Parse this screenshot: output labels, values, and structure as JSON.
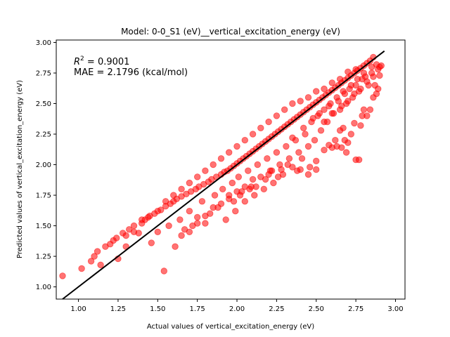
{
  "chart_data": {
    "type": "scatter",
    "title": "Model: 0-0_S1 (eV)__vertical_excitation_energy (eV)",
    "xlabel": "Actual values of vertical_excitation_energy (eV)",
    "ylabel": "Predicted values of vertical_excitation_energy (eV)",
    "xlim": [
      0.86,
      3.06
    ],
    "ylim": [
      0.9,
      3.02
    ],
    "x_ticks": [
      "1.00",
      "1.25",
      "1.50",
      "1.75",
      "2.00",
      "2.25",
      "2.50",
      "2.75",
      "3.00"
    ],
    "y_ticks": [
      "1.00",
      "1.25",
      "1.50",
      "1.75",
      "2.00",
      "2.25",
      "2.50",
      "2.75",
      "3.00"
    ],
    "grid": false,
    "annotations": {
      "r2_prefix": "R",
      "r2_sup": "2",
      "r2_value": " = 0.9001",
      "mae": "MAE = 2.1796 (kcal/mol)"
    },
    "fit_line": {
      "x": [
        0.9,
        2.93
      ],
      "y": [
        0.9,
        2.93
      ]
    },
    "point_color": "#ff0000",
    "point_alpha": 0.55,
    "line_color": "#000000",
    "series": [
      {
        "values": [
          [
            0.9,
            1.09
          ],
          [
            1.02,
            1.15
          ],
          [
            1.08,
            1.21
          ],
          [
            1.1,
            1.25
          ],
          [
            1.12,
            1.29
          ],
          [
            1.14,
            1.18
          ],
          [
            1.17,
            1.33
          ],
          [
            1.2,
            1.35
          ],
          [
            1.22,
            1.38
          ],
          [
            1.24,
            1.4
          ],
          [
            1.25,
            1.23
          ],
          [
            1.28,
            1.44
          ],
          [
            1.3,
            1.33
          ],
          [
            1.32,
            1.47
          ],
          [
            1.35,
            1.5
          ],
          [
            1.38,
            1.44
          ],
          [
            1.4,
            1.52
          ],
          [
            1.42,
            1.55
          ],
          [
            1.44,
            1.57
          ],
          [
            1.46,
            1.36
          ],
          [
            1.48,
            1.6
          ],
          [
            1.5,
            1.45
          ],
          [
            1.52,
            1.63
          ],
          [
            1.54,
            1.13
          ],
          [
            1.55,
            1.66
          ],
          [
            1.57,
            1.5
          ],
          [
            1.58,
            1.68
          ],
          [
            1.6,
            1.7
          ],
          [
            1.61,
            1.33
          ],
          [
            1.62,
            1.72
          ],
          [
            1.64,
            1.55
          ],
          [
            1.65,
            1.74
          ],
          [
            1.67,
            1.47
          ],
          [
            1.68,
            1.76
          ],
          [
            1.7,
            1.62
          ],
          [
            1.71,
            1.78
          ],
          [
            1.72,
            1.5
          ],
          [
            1.74,
            1.8
          ],
          [
            1.75,
            1.57
          ],
          [
            1.76,
            1.82
          ],
          [
            1.78,
            1.7
          ],
          [
            1.79,
            1.84
          ],
          [
            1.8,
            1.52
          ],
          [
            1.82,
            1.86
          ],
          [
            1.83,
            1.6
          ],
          [
            1.84,
            1.88
          ],
          [
            1.86,
            1.75
          ],
          [
            1.87,
            1.9
          ],
          [
            1.88,
            1.65
          ],
          [
            1.9,
            1.92
          ],
          [
            1.91,
            1.8
          ],
          [
            1.92,
            1.94
          ],
          [
            1.93,
            1.55
          ],
          [
            1.94,
            1.95
          ],
          [
            1.95,
            1.72
          ],
          [
            1.96,
            1.97
          ],
          [
            1.97,
            1.85
          ],
          [
            1.98,
            1.99
          ],
          [
            1.99,
            1.62
          ],
          [
            2.0,
            2.01
          ],
          [
            2.01,
            1.9
          ],
          [
            2.02,
            2.03
          ],
          [
            2.03,
            1.78
          ],
          [
            2.04,
            2.05
          ],
          [
            2.05,
            1.7
          ],
          [
            2.06,
            2.07
          ],
          [
            2.07,
            1.95
          ],
          [
            2.08,
            2.09
          ],
          [
            2.09,
            1.82
          ],
          [
            2.1,
            2.11
          ],
          [
            2.11,
            1.75
          ],
          [
            2.12,
            2.13
          ],
          [
            2.13,
            2.0
          ],
          [
            2.14,
            2.15
          ],
          [
            2.15,
            1.9
          ],
          [
            2.16,
            2.17
          ],
          [
            2.17,
            1.8
          ],
          [
            2.18,
            2.19
          ],
          [
            2.19,
            2.05
          ],
          [
            2.2,
            2.21
          ],
          [
            2.21,
            1.95
          ],
          [
            2.22,
            2.23
          ],
          [
            2.23,
            1.85
          ],
          [
            2.24,
            2.25
          ],
          [
            2.25,
            2.1
          ],
          [
            2.26,
            2.27
          ],
          [
            2.27,
            2.0
          ],
          [
            2.28,
            2.29
          ],
          [
            2.29,
            1.92
          ],
          [
            2.3,
            2.31
          ],
          [
            2.31,
            2.15
          ],
          [
            2.32,
            2.33
          ],
          [
            2.33,
            2.05
          ],
          [
            2.34,
            2.35
          ],
          [
            2.35,
            1.98
          ],
          [
            2.36,
            2.37
          ],
          [
            2.37,
            2.2
          ],
          [
            2.38,
            2.39
          ],
          [
            2.39,
            2.1
          ],
          [
            2.4,
            2.41
          ],
          [
            2.41,
            2.05
          ],
          [
            2.42,
            2.43
          ],
          [
            2.43,
            2.25
          ],
          [
            2.44,
            2.45
          ],
          [
            2.45,
            2.15
          ],
          [
            2.46,
            2.47
          ],
          [
            2.47,
            2.35
          ],
          [
            2.48,
            2.49
          ],
          [
            2.49,
            2.2
          ],
          [
            2.5,
            2.51
          ],
          [
            2.51,
            2.4
          ],
          [
            2.52,
            2.53
          ],
          [
            2.53,
            2.28
          ],
          [
            2.54,
            2.55
          ],
          [
            2.55,
            2.45
          ],
          [
            2.56,
            2.57
          ],
          [
            2.57,
            2.35
          ],
          [
            2.58,
            2.59
          ],
          [
            2.59,
            2.5
          ],
          [
            2.6,
            2.61
          ],
          [
            2.61,
            2.42
          ],
          [
            2.62,
            2.63
          ],
          [
            2.63,
            2.55
          ],
          [
            2.64,
            2.65
          ],
          [
            2.65,
            2.45
          ],
          [
            2.66,
            2.67
          ],
          [
            2.67,
            2.6
          ],
          [
            2.68,
            2.69
          ],
          [
            2.69,
            2.5
          ],
          [
            2.7,
            2.71
          ],
          [
            2.71,
            2.62
          ],
          [
            2.72,
            2.73
          ],
          [
            2.73,
            2.55
          ],
          [
            2.74,
            2.75
          ],
          [
            2.75,
            2.65
          ],
          [
            2.76,
            2.77
          ],
          [
            2.77,
            2.6
          ],
          [
            2.78,
            2.79
          ],
          [
            2.79,
            2.7
          ],
          [
            2.8,
            2.81
          ],
          [
            2.81,
            2.72
          ],
          [
            2.82,
            2.83
          ],
          [
            2.83,
            2.65
          ],
          [
            2.84,
            2.85
          ],
          [
            2.85,
            2.75
          ],
          [
            2.86,
            2.88
          ],
          [
            2.88,
            2.82
          ],
          [
            2.9,
            2.8
          ],
          [
            2.91,
            2.81
          ],
          [
            2.9,
            2.73
          ],
          [
            2.5,
            1.96
          ],
          [
            2.58,
            2.16
          ],
          [
            2.62,
            2.2
          ],
          [
            2.65,
            2.28
          ],
          [
            2.67,
            2.3
          ],
          [
            2.69,
            2.1
          ],
          [
            2.7,
            2.18
          ],
          [
            2.72,
            2.25
          ],
          [
            2.74,
            2.34
          ],
          [
            2.75,
            2.04
          ],
          [
            2.77,
            2.04
          ],
          [
            2.78,
            2.32
          ],
          [
            2.79,
            2.4
          ],
          [
            2.8,
            2.45
          ],
          [
            2.82,
            2.4
          ],
          [
            2.84,
            2.45
          ],
          [
            2.86,
            2.55
          ],
          [
            2.88,
            2.58
          ],
          [
            2.87,
            2.65
          ],
          [
            2.89,
            2.62
          ],
          [
            2.2,
            1.92
          ],
          [
            2.26,
            1.9
          ],
          [
            2.4,
            1.96
          ],
          [
            2.46,
            1.98
          ],
          [
            2.5,
            2.03
          ],
          [
            2.55,
            2.12
          ],
          [
            2.6,
            2.14
          ],
          [
            2.63,
            2.15
          ],
          [
            2.66,
            2.14
          ],
          [
            2.68,
            2.2
          ],
          [
            2.1,
            1.88
          ],
          [
            2.05,
            1.82
          ],
          [
            2.0,
            1.78
          ],
          [
            1.95,
            1.75
          ],
          [
            1.9,
            1.68
          ],
          [
            1.85,
            1.65
          ],
          [
            1.8,
            1.58
          ],
          [
            1.75,
            1.52
          ],
          [
            1.7,
            1.45
          ],
          [
            1.65,
            1.42
          ],
          [
            2.3,
            2.45
          ],
          [
            2.35,
            2.5
          ],
          [
            2.4,
            2.52
          ],
          [
            2.45,
            2.55
          ],
          [
            2.5,
            2.6
          ],
          [
            2.55,
            2.62
          ],
          [
            2.6,
            2.67
          ],
          [
            2.65,
            2.7
          ],
          [
            2.7,
            2.76
          ],
          [
            2.75,
            2.78
          ],
          [
            2.2,
            2.35
          ],
          [
            2.25,
            2.4
          ],
          [
            2.15,
            2.3
          ],
          [
            2.1,
            2.25
          ],
          [
            2.05,
            2.2
          ],
          [
            2.0,
            2.15
          ],
          [
            1.95,
            2.1
          ],
          [
            1.9,
            2.05
          ],
          [
            1.85,
            2.0
          ],
          [
            1.8,
            1.95
          ],
          [
            1.75,
            1.9
          ],
          [
            1.7,
            1.85
          ],
          [
            1.65,
            1.8
          ],
          [
            1.6,
            1.75
          ],
          [
            1.55,
            1.7
          ],
          [
            1.5,
            1.62
          ],
          [
            1.45,
            1.58
          ],
          [
            1.4,
            1.55
          ],
          [
            1.35,
            1.45
          ],
          [
            1.3,
            1.42
          ],
          [
            2.35,
            2.22
          ],
          [
            2.42,
            2.3
          ],
          [
            2.48,
            2.38
          ],
          [
            2.52,
            2.42
          ],
          [
            2.58,
            2.48
          ],
          [
            2.64,
            2.52
          ],
          [
            2.68,
            2.58
          ],
          [
            2.72,
            2.65
          ],
          [
            2.76,
            2.7
          ],
          [
            2.8,
            2.75
          ],
          [
            2.45,
            1.92
          ],
          [
            2.38,
            1.95
          ],
          [
            2.32,
            2.0
          ],
          [
            2.28,
            1.96
          ],
          [
            2.22,
            1.95
          ],
          [
            2.18,
            1.88
          ],
          [
            2.12,
            1.82
          ],
          [
            2.08,
            1.8
          ],
          [
            2.02,
            1.75
          ],
          [
            1.98,
            1.7
          ],
          [
            2.55,
            2.35
          ],
          [
            2.6,
            2.42
          ],
          [
            2.66,
            2.48
          ],
          [
            2.7,
            2.52
          ],
          [
            2.74,
            2.58
          ],
          [
            2.78,
            2.62
          ],
          [
            2.82,
            2.68
          ],
          [
            2.86,
            2.72
          ],
          [
            2.89,
            2.78
          ],
          [
            2.85,
            2.8
          ]
        ]
      }
    ]
  }
}
